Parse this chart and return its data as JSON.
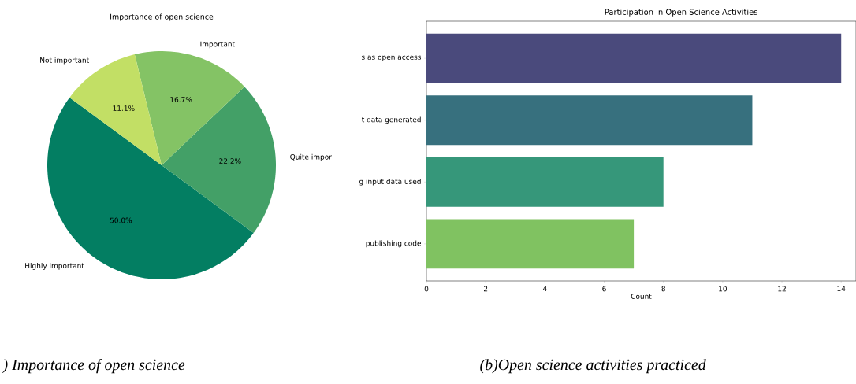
{
  "chart_data": [
    {
      "type": "pie",
      "title": "Importance of open science",
      "categories": [
        "Highly important",
        "Quite impor",
        "Important",
        "Not important"
      ],
      "values": [
        50.0,
        22.2,
        16.7,
        11.1
      ],
      "value_labels": [
        "50.0%",
        "22.2%",
        "16.7%",
        "11.1%"
      ],
      "colors": [
        "#037e62",
        "#43a067",
        "#84c365",
        "#c2df65"
      ],
      "annotations": [
        ")  Importance of open science"
      ]
    },
    {
      "type": "bar",
      "orientation": "horizontal",
      "title": "Participation in Open Science Activities",
      "xlabel": "Count",
      "categories": [
        "s as open access",
        "t data generated",
        "g input data used",
        "publishing code"
      ],
      "values": [
        14,
        11,
        8,
        7
      ],
      "colors": [
        "#4a4a7c",
        "#37707e",
        "#36977a",
        "#80c261"
      ],
      "xlim": [
        0,
        14.5
      ],
      "xticks": [
        0,
        2,
        4,
        6,
        8,
        10,
        12,
        14
      ],
      "annotations": [
        "(b)Open science activities practiced"
      ]
    }
  ]
}
